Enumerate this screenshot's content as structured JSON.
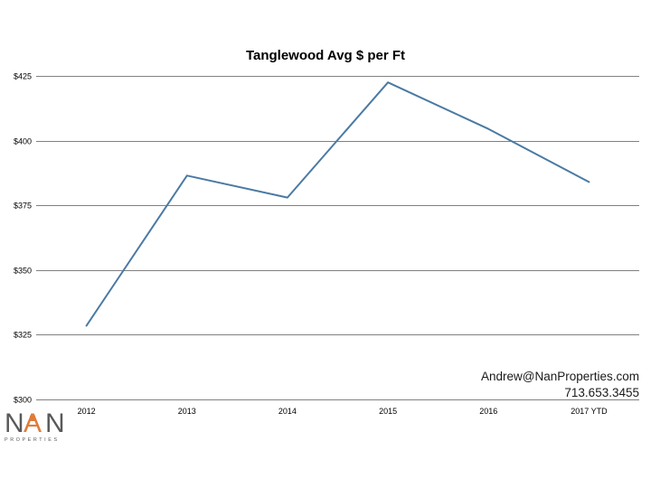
{
  "chart_data": {
    "type": "line",
    "title": "Tanglewood Avg $ per Ft",
    "categories": [
      "2012",
      "2013",
      "2014",
      "2015",
      "2016",
      "2017 YTD"
    ],
    "series": [
      {
        "values": [
          328.5,
          386.5,
          378,
          422.5,
          404.5,
          384
        ]
      }
    ],
    "yticks": [
      "$300",
      "$325",
      "$350",
      "$375",
      "$400",
      "$425"
    ],
    "ylim": [
      300,
      425
    ],
    "grid": true,
    "legend": "none",
    "line_color": "#4a7aa3"
  },
  "contact": {
    "email": "Andrew@NanProperties.com",
    "phone": "713.653.3455"
  },
  "logo": {
    "letters": [
      "N",
      "A",
      "N"
    ],
    "tagline": "PROPERTIES",
    "primary_color": "#595959",
    "accent_color": "#e07b39"
  }
}
